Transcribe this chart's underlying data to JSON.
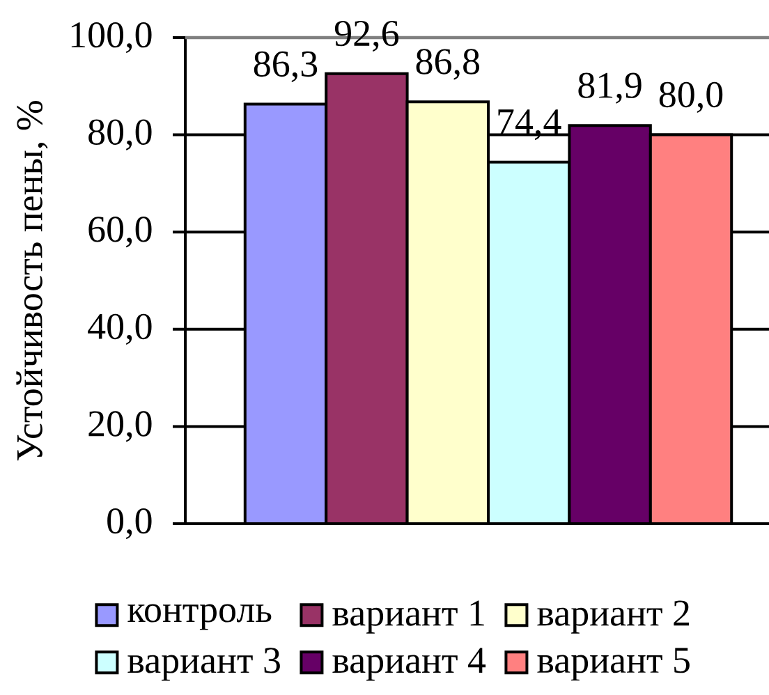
{
  "chart_data": {
    "type": "bar",
    "categories": [
      null
    ],
    "ylabel": "Устойчивость пены, %",
    "ylim": [
      0,
      100
    ],
    "yticks": [
      {
        "value": 0,
        "label": "0,0"
      },
      {
        "value": 20,
        "label": "20,0"
      },
      {
        "value": 40,
        "label": "40,0"
      },
      {
        "value": 60,
        "label": "60,0"
      },
      {
        "value": 80,
        "label": "80,0"
      },
      {
        "value": 100,
        "label": "100,0"
      }
    ],
    "grid": "y",
    "legend": "bottom",
    "series": [
      {
        "name": "контроль",
        "color": "#9999ff",
        "values": [
          86.3
        ],
        "value_labels": [
          "86,3"
        ]
      },
      {
        "name": "вариант 1",
        "color": "#993366",
        "values": [
          92.6
        ],
        "value_labels": [
          "92,6"
        ]
      },
      {
        "name": "вариант 2",
        "color": "#ffffcc",
        "values": [
          86.8
        ],
        "value_labels": [
          "86,8"
        ]
      },
      {
        "name": "вариант 3",
        "color": "#ccffff",
        "values": [
          74.4
        ],
        "value_labels": [
          "74,4"
        ]
      },
      {
        "name": "вариант 4",
        "color": "#660066",
        "values": [
          81.9
        ],
        "value_labels": [
          "81,9"
        ]
      },
      {
        "name": "вариант 5",
        "color": "#ff8080",
        "values": [
          80.0
        ],
        "value_labels": [
          "80,0"
        ]
      }
    ]
  }
}
